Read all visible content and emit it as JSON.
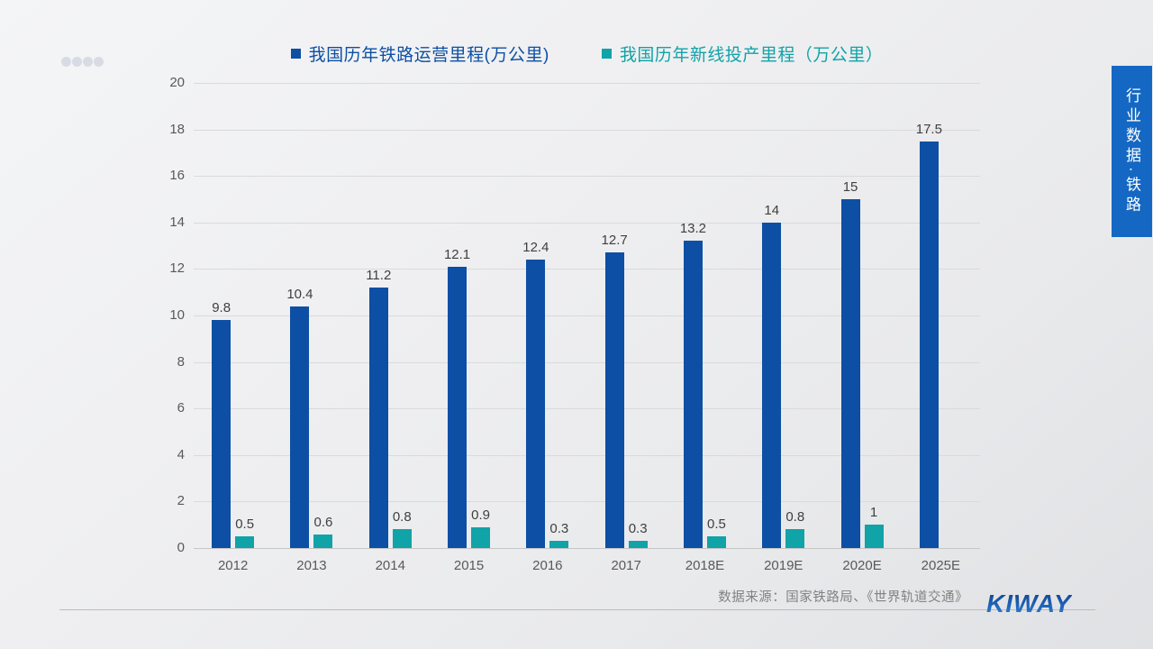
{
  "slide": {
    "dots_count": 4,
    "source_note": "数据来源：国家铁路局、《世界轨道交通》",
    "logo_text": "KIWAY",
    "side_banner_text": "行业数据·铁路"
  },
  "chart_data": {
    "type": "bar",
    "categories": [
      "2012",
      "2013",
      "2014",
      "2015",
      "2016",
      "2017",
      "2018E",
      "2019E",
      "2020E",
      "2025E"
    ],
    "series": [
      {
        "name": "我国历年铁路运营里程(万公里)",
        "color": "#0d4fa4",
        "values": [
          9.8,
          10.4,
          11.2,
          12.1,
          12.4,
          12.7,
          13.2,
          14,
          15,
          17.5
        ],
        "labels": [
          "9.8",
          "10.4",
          "11.2",
          "12.1",
          "12.4",
          "12.7",
          "13.2",
          "14",
          "15",
          "17.5"
        ]
      },
      {
        "name": "我国历年新线投产里程（万公里）",
        "color": "#10a3a8",
        "values": [
          0.5,
          0.6,
          0.8,
          0.9,
          0.3,
          0.3,
          0.5,
          0.8,
          1,
          null
        ],
        "labels": [
          "0.5",
          "0.6",
          "0.8",
          "0.9",
          "0.3",
          "0.3",
          "0.5",
          "0.8",
          "1",
          ""
        ]
      }
    ],
    "ylim": [
      0,
      20
    ],
    "ytick_step": 2,
    "grid": true,
    "legend_position": "top"
  }
}
